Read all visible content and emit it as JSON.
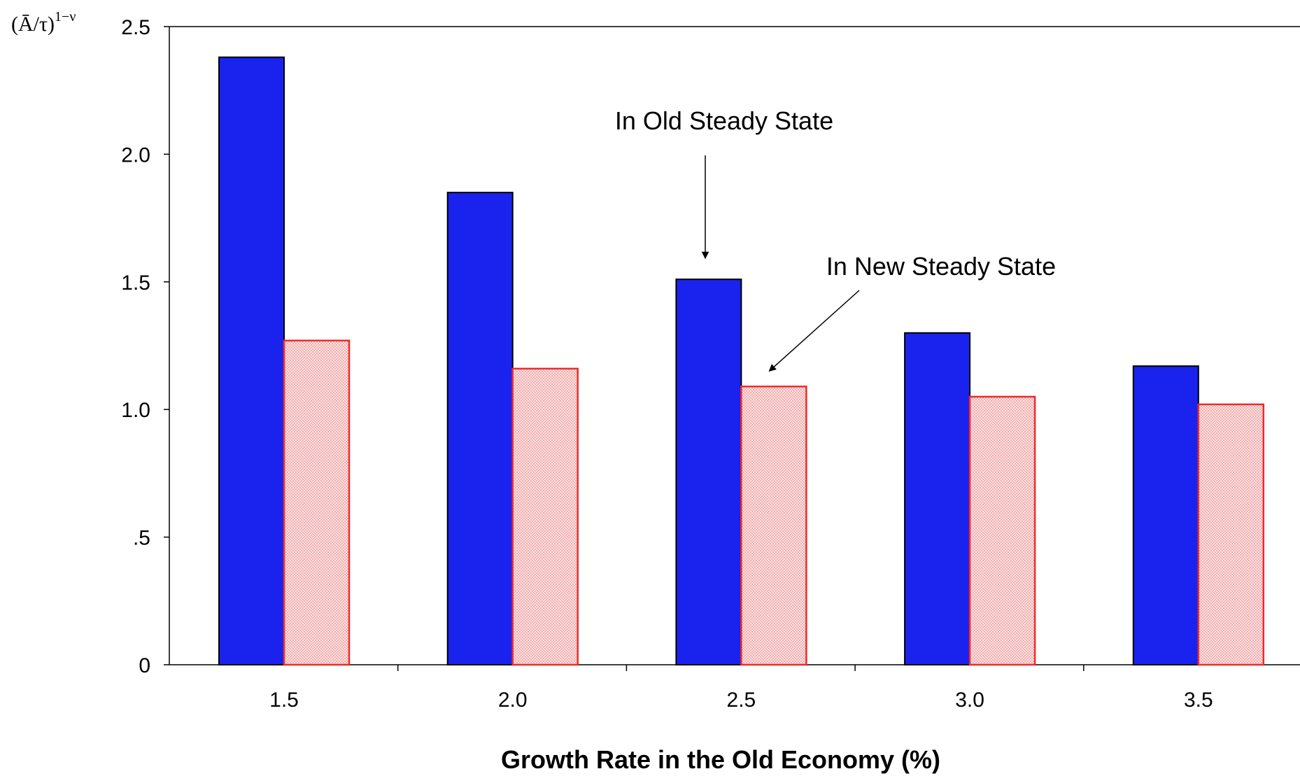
{
  "chart_data": {
    "type": "bar",
    "ylabel": "(Ā/τ)",
    "ylabel_exponent": "1−ν",
    "xlabel": "Growth Rate in the Old Economy (%)",
    "categories": [
      "1.5",
      "2.0",
      "2.5",
      "3.0",
      "3.5"
    ],
    "series": [
      {
        "values": [
          2.38,
          1.85,
          1.51,
          1.3,
          1.17
        ],
        "color": "#1a22ee",
        "fill": "solid"
      },
      {
        "values": [
          1.27,
          1.16,
          1.09,
          1.05,
          1.02
        ],
        "color": "#f02a2a",
        "fill": "dotted-pink"
      }
    ],
    "ylim": [
      0,
      2.5
    ],
    "yticks": [
      0,
      0.5,
      1.0,
      1.5,
      2.0,
      2.5
    ],
    "ytick_labels": [
      "0",
      ".5",
      "1.0",
      "1.5",
      "2.0",
      "2.5"
    ],
    "annotations": [
      {
        "text": "In Old Steady State",
        "points_to": {
          "category": "2.5",
          "series": 0
        }
      },
      {
        "text": "In New Steady State",
        "points_to": {
          "category": "2.5",
          "series": 1
        }
      }
    ],
    "grid": false,
    "legend": "none"
  }
}
